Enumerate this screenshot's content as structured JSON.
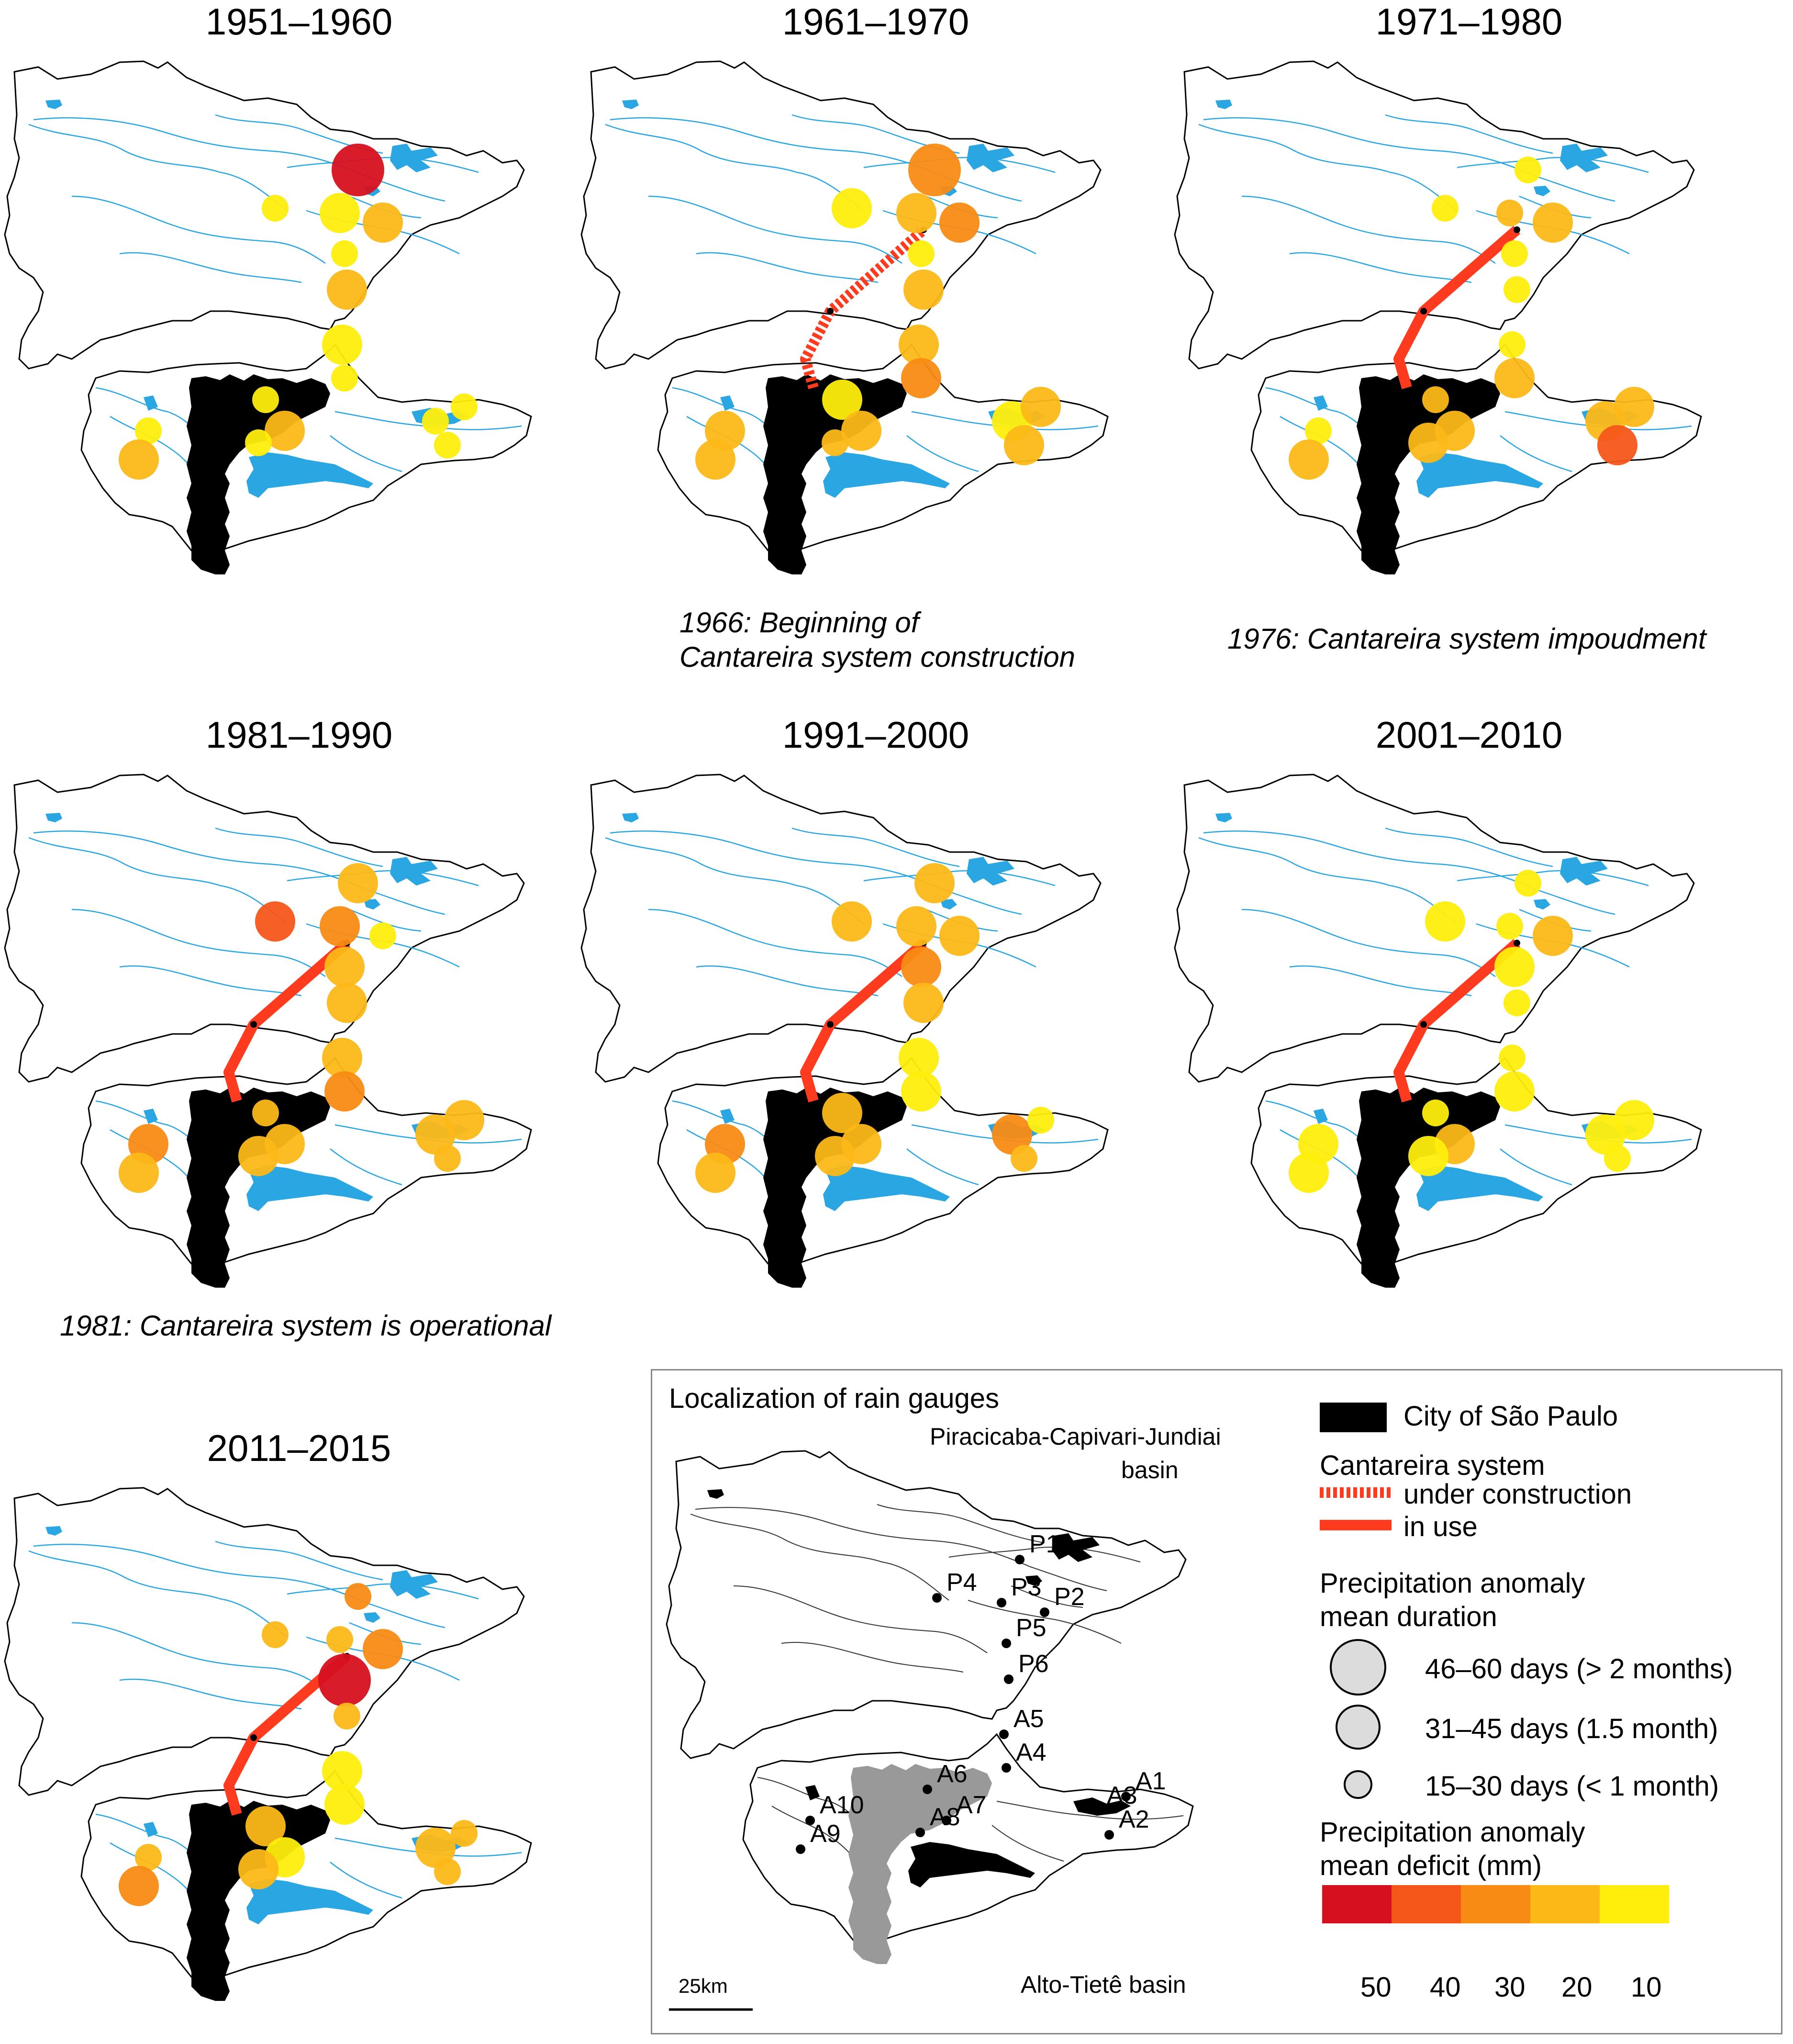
{
  "colors": {
    "river": "#2aa6e2",
    "boundary": "#000000",
    "city": "#000000",
    "city_locator": "#999999",
    "canal": "#ff3b1f",
    "deficit_50": "#d6101f",
    "deficit_40": "#f5561a",
    "deficit_30": "#f88b14",
    "deficit_20": "#fcb817",
    "deficit_10": "#ffee0c"
  },
  "panels": [
    {
      "title": "1951–1960",
      "canal": "none",
      "caption": "",
      "stations": [
        {
          "id": "P1",
          "duration": "long",
          "deficit": 50
        },
        {
          "id": "P4",
          "duration": "short",
          "deficit": 10
        },
        {
          "id": "P3",
          "duration": "mid",
          "deficit": 10
        },
        {
          "id": "P2",
          "duration": "mid",
          "deficit": 20
        },
        {
          "id": "P5",
          "duration": "short",
          "deficit": 10
        },
        {
          "id": "P6",
          "duration": "mid",
          "deficit": 20
        },
        {
          "id": "A5",
          "duration": "mid",
          "deficit": 10
        },
        {
          "id": "A4",
          "duration": "short",
          "deficit": 10
        },
        {
          "id": "A6",
          "duration": "short",
          "deficit": 10
        },
        {
          "id": "A7",
          "duration": "mid",
          "deficit": 20
        },
        {
          "id": "A8",
          "duration": "short",
          "deficit": 10
        },
        {
          "id": "A10",
          "duration": "short",
          "deficit": 10
        },
        {
          "id": "A9",
          "duration": "mid",
          "deficit": 20
        },
        {
          "id": "A3",
          "duration": "short",
          "deficit": 10
        },
        {
          "id": "A2",
          "duration": "short",
          "deficit": 10
        },
        {
          "id": "A1",
          "duration": "short",
          "deficit": 10
        }
      ]
    },
    {
      "title": "1961–1970",
      "canal": "construction",
      "caption": "1966: Beginning of\nCantareira system construction",
      "stations": [
        {
          "id": "P1",
          "duration": "long",
          "deficit": 30
        },
        {
          "id": "P4",
          "duration": "mid",
          "deficit": 10
        },
        {
          "id": "P3",
          "duration": "mid",
          "deficit": 20
        },
        {
          "id": "P2",
          "duration": "mid",
          "deficit": 30
        },
        {
          "id": "P5",
          "duration": "short",
          "deficit": 10
        },
        {
          "id": "P6",
          "duration": "mid",
          "deficit": 20
        },
        {
          "id": "A5",
          "duration": "mid",
          "deficit": 20
        },
        {
          "id": "A4",
          "duration": "mid",
          "deficit": 30
        },
        {
          "id": "A6",
          "duration": "mid",
          "deficit": 10
        },
        {
          "id": "A7",
          "duration": "mid",
          "deficit": 20
        },
        {
          "id": "A8",
          "duration": "short",
          "deficit": 20
        },
        {
          "id": "A10",
          "duration": "mid",
          "deficit": 20
        },
        {
          "id": "A9",
          "duration": "mid",
          "deficit": 20
        },
        {
          "id": "A3",
          "duration": "mid",
          "deficit": 10
        },
        {
          "id": "A2",
          "duration": "mid",
          "deficit": 20
        },
        {
          "id": "A1",
          "duration": "mid",
          "deficit": 20
        }
      ]
    },
    {
      "title": "1971–1980",
      "canal": "in use",
      "caption": "1976: Cantareira system impoudment",
      "stations": [
        {
          "id": "P1",
          "duration": "short",
          "deficit": 10
        },
        {
          "id": "P4",
          "duration": "short",
          "deficit": 10
        },
        {
          "id": "P3",
          "duration": "short",
          "deficit": 20
        },
        {
          "id": "P2",
          "duration": "mid",
          "deficit": 20
        },
        {
          "id": "P5",
          "duration": "short",
          "deficit": 10
        },
        {
          "id": "P6",
          "duration": "short",
          "deficit": 10
        },
        {
          "id": "A5",
          "duration": "short",
          "deficit": 10
        },
        {
          "id": "A4",
          "duration": "mid",
          "deficit": 20
        },
        {
          "id": "A6",
          "duration": "short",
          "deficit": 20
        },
        {
          "id": "A7",
          "duration": "mid",
          "deficit": 20
        },
        {
          "id": "A8",
          "duration": "mid",
          "deficit": 20
        },
        {
          "id": "A10",
          "duration": "short",
          "deficit": 10
        },
        {
          "id": "A9",
          "duration": "mid",
          "deficit": 20
        },
        {
          "id": "A3",
          "duration": "mid",
          "deficit": 20
        },
        {
          "id": "A2",
          "duration": "mid",
          "deficit": 40
        },
        {
          "id": "A1",
          "duration": "mid",
          "deficit": 20
        }
      ]
    },
    {
      "title": "1981–1990",
      "canal": "in use",
      "caption": "1981: Cantareira system is operational",
      "stations": [
        {
          "id": "P1",
          "duration": "mid",
          "deficit": 20
        },
        {
          "id": "P4",
          "duration": "mid",
          "deficit": 40
        },
        {
          "id": "P3",
          "duration": "mid",
          "deficit": 30
        },
        {
          "id": "P2",
          "duration": "short",
          "deficit": 10
        },
        {
          "id": "P5",
          "duration": "mid",
          "deficit": 20
        },
        {
          "id": "P6",
          "duration": "mid",
          "deficit": 20
        },
        {
          "id": "A5",
          "duration": "mid",
          "deficit": 20
        },
        {
          "id": "A4",
          "duration": "mid",
          "deficit": 30
        },
        {
          "id": "A6",
          "duration": "short",
          "deficit": 20
        },
        {
          "id": "A7",
          "duration": "mid",
          "deficit": 20
        },
        {
          "id": "A8",
          "duration": "mid",
          "deficit": 20
        },
        {
          "id": "A10",
          "duration": "mid",
          "deficit": 30
        },
        {
          "id": "A9",
          "duration": "mid",
          "deficit": 20
        },
        {
          "id": "A3",
          "duration": "mid",
          "deficit": 20
        },
        {
          "id": "A2",
          "duration": "short",
          "deficit": 20
        },
        {
          "id": "A1",
          "duration": "mid",
          "deficit": 20
        }
      ]
    },
    {
      "title": "1991–2000",
      "canal": "in use",
      "caption": "",
      "stations": [
        {
          "id": "P1",
          "duration": "mid",
          "deficit": 20
        },
        {
          "id": "P4",
          "duration": "mid",
          "deficit": 20
        },
        {
          "id": "P3",
          "duration": "mid",
          "deficit": 20
        },
        {
          "id": "P2",
          "duration": "mid",
          "deficit": 20
        },
        {
          "id": "P5",
          "duration": "mid",
          "deficit": 30
        },
        {
          "id": "P6",
          "duration": "mid",
          "deficit": 20
        },
        {
          "id": "A5",
          "duration": "mid",
          "deficit": 10
        },
        {
          "id": "A4",
          "duration": "mid",
          "deficit": 10
        },
        {
          "id": "A6",
          "duration": "mid",
          "deficit": 20
        },
        {
          "id": "A7",
          "duration": "mid",
          "deficit": 20
        },
        {
          "id": "A8",
          "duration": "mid",
          "deficit": 20
        },
        {
          "id": "A10",
          "duration": "mid",
          "deficit": 30
        },
        {
          "id": "A9",
          "duration": "mid",
          "deficit": 20
        },
        {
          "id": "A3",
          "duration": "mid",
          "deficit": 30
        },
        {
          "id": "A2",
          "duration": "short",
          "deficit": 20
        },
        {
          "id": "A1",
          "duration": "short",
          "deficit": 10
        }
      ]
    },
    {
      "title": "2001–2010",
      "canal": "in use",
      "caption": "",
      "stations": [
        {
          "id": "P1",
          "duration": "short",
          "deficit": 10
        },
        {
          "id": "P4",
          "duration": "mid",
          "deficit": 10
        },
        {
          "id": "P3",
          "duration": "short",
          "deficit": 10
        },
        {
          "id": "P2",
          "duration": "mid",
          "deficit": 20
        },
        {
          "id": "P5",
          "duration": "mid",
          "deficit": 10
        },
        {
          "id": "P6",
          "duration": "short",
          "deficit": 10
        },
        {
          "id": "A5",
          "duration": "short",
          "deficit": 10
        },
        {
          "id": "A4",
          "duration": "mid",
          "deficit": 10
        },
        {
          "id": "A6",
          "duration": "short",
          "deficit": 10
        },
        {
          "id": "A7",
          "duration": "mid",
          "deficit": 20
        },
        {
          "id": "A8",
          "duration": "mid",
          "deficit": 10
        },
        {
          "id": "A10",
          "duration": "mid",
          "deficit": 10
        },
        {
          "id": "A9",
          "duration": "mid",
          "deficit": 10
        },
        {
          "id": "A3",
          "duration": "mid",
          "deficit": 10
        },
        {
          "id": "A2",
          "duration": "short",
          "deficit": 10
        },
        {
          "id": "A1",
          "duration": "mid",
          "deficit": 10
        }
      ]
    },
    {
      "title": "2011–2015",
      "canal": "in use",
      "caption": "",
      "stations": [
        {
          "id": "P1",
          "duration": "short",
          "deficit": 30
        },
        {
          "id": "P4",
          "duration": "short",
          "deficit": 20
        },
        {
          "id": "P3",
          "duration": "short",
          "deficit": 20
        },
        {
          "id": "P2",
          "duration": "mid",
          "deficit": 30
        },
        {
          "id": "P5",
          "duration": "long",
          "deficit": 50
        },
        {
          "id": "P6",
          "duration": "short",
          "deficit": 20
        },
        {
          "id": "A5",
          "duration": "mid",
          "deficit": 10
        },
        {
          "id": "A4",
          "duration": "mid",
          "deficit": 10
        },
        {
          "id": "A6",
          "duration": "mid",
          "deficit": 20
        },
        {
          "id": "A7",
          "duration": "mid",
          "deficit": 10
        },
        {
          "id": "A8",
          "duration": "mid",
          "deficit": 20
        },
        {
          "id": "A10",
          "duration": "short",
          "deficit": 20
        },
        {
          "id": "A9",
          "duration": "mid",
          "deficit": 30
        },
        {
          "id": "A3",
          "duration": "mid",
          "deficit": 20
        },
        {
          "id": "A2",
          "duration": "short",
          "deficit": 20
        },
        {
          "id": "A1",
          "duration": "short",
          "deficit": 20
        }
      ]
    }
  ],
  "legend": {
    "locator_title": "Localization of rain gauges",
    "city": "City of São Paulo",
    "cantareira_title": "Cantareira system",
    "under_construction": "under construction",
    "in_use": "in use",
    "duration_title_1": "Precipitation anomaly",
    "duration_title_2": "mean duration",
    "duration_long": "46–60 days (> 2 months)",
    "duration_mid": "31–45 days (1.5 month)",
    "duration_short": "15–30 days (< 1 month)",
    "deficit_title_1": "Precipitation anomaly",
    "deficit_title_2": "mean deficit (mm)",
    "deficit_ticks": [
      "50",
      "40",
      "30",
      "20",
      "10"
    ],
    "pcj_basin_1": "Piracicaba-Capivari-Jundiai",
    "pcj_basin_2": "basin",
    "alto_tiete_basin": "Alto-Tietê basin",
    "scale_bar": "25km",
    "gauges": [
      "P1",
      "P2",
      "P3",
      "P4",
      "P5",
      "P6",
      "A1",
      "A2",
      "A3",
      "A4",
      "A5",
      "A6",
      "A7",
      "A8",
      "A9",
      "A10"
    ]
  }
}
